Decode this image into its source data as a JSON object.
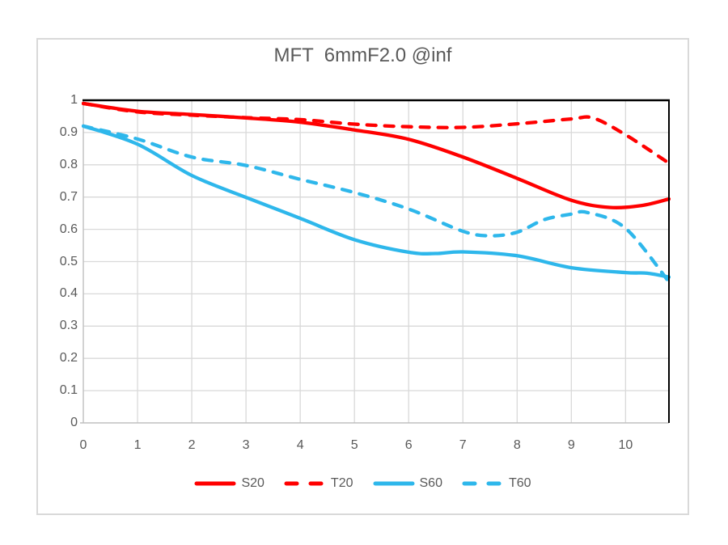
{
  "chart_data": {
    "type": "line",
    "title": "MFT  6mmF2.0 @inf",
    "xlabel": "",
    "ylabel": "",
    "xlim": [
      0,
      10.8
    ],
    "ylim": [
      0,
      1
    ],
    "x_ticks": [
      0,
      1,
      2,
      3,
      4,
      5,
      6,
      7,
      8,
      9,
      10
    ],
    "y_ticks": [
      0,
      0.1,
      0.2,
      0.3,
      0.4,
      0.5,
      0.6,
      0.7,
      0.8,
      0.9,
      1
    ],
    "grid": true,
    "legend_position": "bottom",
    "series": [
      {
        "name": "S20",
        "color": "#ff0000",
        "style": "solid",
        "points": [
          [
            0,
            0.99
          ],
          [
            1,
            0.966
          ],
          [
            2,
            0.956
          ],
          [
            3,
            0.945
          ],
          [
            4,
            0.932
          ],
          [
            5,
            0.908
          ],
          [
            6,
            0.879
          ],
          [
            7,
            0.824
          ],
          [
            8,
            0.758
          ],
          [
            9,
            0.69
          ],
          [
            9.7,
            0.668
          ],
          [
            10.3,
            0.674
          ],
          [
            10.8,
            0.694
          ]
        ]
      },
      {
        "name": "T20",
        "color": "#ff0000",
        "style": "dashed",
        "points": [
          [
            0,
            0.99
          ],
          [
            1,
            0.964
          ],
          [
            2,
            0.954
          ],
          [
            3,
            0.946
          ],
          [
            4,
            0.94
          ],
          [
            5,
            0.926
          ],
          [
            6,
            0.918
          ],
          [
            7,
            0.916
          ],
          [
            8,
            0.927
          ],
          [
            9,
            0.942
          ],
          [
            9.4,
            0.945
          ],
          [
            10,
            0.893
          ],
          [
            10.8,
            0.805
          ]
        ]
      },
      {
        "name": "S60",
        "color": "#2eb7eb",
        "style": "solid",
        "points": [
          [
            0,
            0.92
          ],
          [
            1,
            0.864
          ],
          [
            2,
            0.767
          ],
          [
            3,
            0.699
          ],
          [
            4,
            0.634
          ],
          [
            5,
            0.568
          ],
          [
            6,
            0.529
          ],
          [
            6.5,
            0.525
          ],
          [
            7,
            0.53
          ],
          [
            8,
            0.518
          ],
          [
            9,
            0.481
          ],
          [
            10,
            0.466
          ],
          [
            10.4,
            0.464
          ],
          [
            10.8,
            0.452
          ]
        ]
      },
      {
        "name": "T60",
        "color": "#2eb7eb",
        "style": "dashed",
        "points": [
          [
            0,
            0.92
          ],
          [
            1,
            0.88
          ],
          [
            2,
            0.824
          ],
          [
            3,
            0.798
          ],
          [
            4,
            0.755
          ],
          [
            5,
            0.714
          ],
          [
            6,
            0.663
          ],
          [
            7,
            0.594
          ],
          [
            7.5,
            0.58
          ],
          [
            8,
            0.591
          ],
          [
            8.5,
            0.63
          ],
          [
            9,
            0.647
          ],
          [
            9.3,
            0.652
          ],
          [
            10,
            0.603
          ],
          [
            10.8,
            0.437
          ]
        ]
      }
    ]
  },
  "style": {
    "text_color": "#595959",
    "grid_color": "#d9d9d9",
    "axis_color": "#bfbfbf",
    "border_black": "#000000",
    "frame_color": "#d9d9d9"
  }
}
